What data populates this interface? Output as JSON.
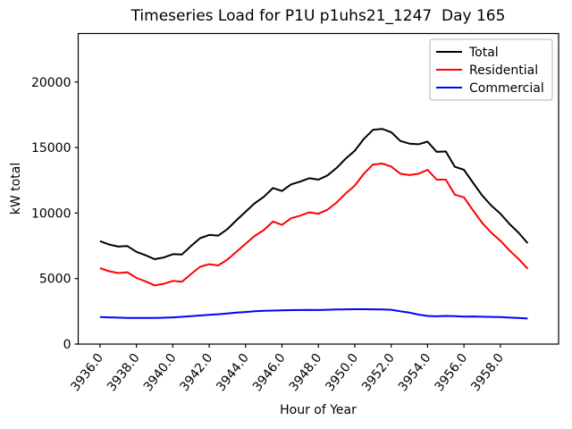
{
  "figure": {
    "title": "Timeseries Load for P1U p1uhs21_1247  Day 165",
    "xlabel": "Hour of Year",
    "ylabel": "kW total"
  },
  "chart_data": {
    "type": "line",
    "title": "Timeseries Load for P1U p1uhs21_1247  Day 165",
    "xlabel": "Hour of Year",
    "ylabel": "kW total",
    "grid": false,
    "xlim": [
      3934.8,
      3961.2
    ],
    "ylim": [
      0,
      23700
    ],
    "xticks": [
      3936,
      3938,
      3940,
      3942,
      3944,
      3946,
      3948,
      3950,
      3952,
      3954,
      3956,
      3958
    ],
    "xtick_labels": [
      "3936.0",
      "3938.0",
      "3940.0",
      "3942.0",
      "3944.0",
      "3946.0",
      "3948.0",
      "3950.0",
      "3952.0",
      "3954.0",
      "3956.0",
      "3958.0"
    ],
    "yticks": [
      0,
      5000,
      10000,
      15000,
      20000
    ],
    "ytick_labels": [
      "0",
      "5000",
      "10000",
      "15000",
      "20000"
    ],
    "legend": {
      "position": "upper right",
      "entries": [
        "Total",
        "Residential",
        "Commercial"
      ]
    },
    "x": [
      3936.0,
      3936.5,
      3937.0,
      3937.5,
      3938.0,
      3938.5,
      3939.0,
      3939.5,
      3940.0,
      3940.5,
      3941.0,
      3941.5,
      3942.0,
      3942.5,
      3943.0,
      3943.5,
      3944.0,
      3944.5,
      3945.0,
      3945.5,
      3946.0,
      3946.5,
      3947.0,
      3947.5,
      3948.0,
      3948.5,
      3949.0,
      3949.5,
      3950.0,
      3950.5,
      3951.0,
      3951.5,
      3952.0,
      3952.5,
      3953.0,
      3953.5,
      3954.0,
      3954.5,
      3955.0,
      3955.5,
      3956.0,
      3956.5,
      3957.0,
      3957.5,
      3958.0,
      3958.5,
      3959.0,
      3959.5
    ],
    "series": [
      {
        "name": "Total",
        "color": "#000000",
        "values": [
          7860,
          7600,
          7440,
          7480,
          7040,
          6780,
          6480,
          6610,
          6860,
          6840,
          7480,
          8080,
          8330,
          8280,
          8780,
          9450,
          10100,
          10750,
          11240,
          11910,
          11680,
          12190,
          12400,
          12660,
          12550,
          12870,
          13440,
          14150,
          14760,
          15660,
          16350,
          16420,
          16170,
          15500,
          15300,
          15250,
          15450,
          14670,
          14700,
          13530,
          13300,
          12310,
          11340,
          10570,
          9960,
          9170,
          8500,
          7700
        ]
      },
      {
        "name": "Residential",
        "color": "#ff0000",
        "values": [
          5800,
          5560,
          5420,
          5480,
          5050,
          4790,
          4480,
          4600,
          4820,
          4760,
          5350,
          5900,
          6100,
          6000,
          6450,
          7050,
          7650,
          8250,
          8700,
          9350,
          9100,
          9600,
          9800,
          10050,
          9950,
          10250,
          10800,
          11500,
          12100,
          13000,
          13700,
          13780,
          13550,
          13000,
          12900,
          13000,
          13300,
          12550,
          12550,
          11400,
          11200,
          10200,
          9250,
          8500,
          7900,
          7150,
          6500,
          5750
        ]
      },
      {
        "name": "Commercial",
        "color": "#0000ff",
        "values": [
          2060,
          2040,
          2020,
          2000,
          1990,
          1990,
          2000,
          2010,
          2040,
          2080,
          2130,
          2180,
          2230,
          2280,
          2330,
          2400,
          2450,
          2500,
          2540,
          2560,
          2580,
          2590,
          2600,
          2610,
          2600,
          2620,
          2640,
          2650,
          2660,
          2660,
          2650,
          2640,
          2620,
          2500,
          2400,
          2250,
          2150,
          2120,
          2150,
          2130,
          2100,
          2110,
          2090,
          2070,
          2060,
          2020,
          2000,
          1950
        ]
      }
    ]
  }
}
